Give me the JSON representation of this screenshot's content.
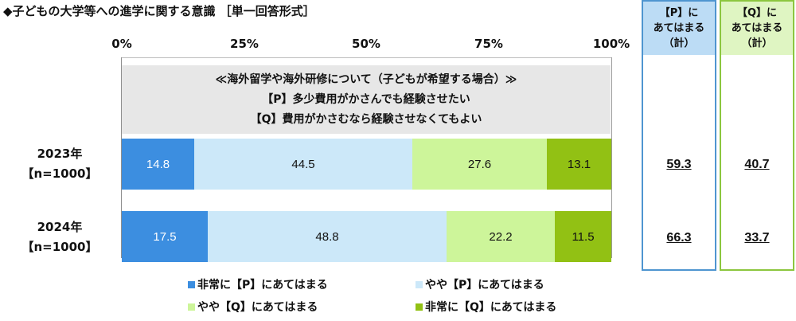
{
  "title": "◆子どもの大学等への進学に関する意識 ［単一回答形式］",
  "colors": {
    "strong_p": "#3c8ee0",
    "some_p": "#cce8f9",
    "some_q": "#cdf59a",
    "strong_q": "#92c114",
    "panel_p_border": "#4f95d0",
    "panel_q_border": "#8cc63f"
  },
  "note": {
    "line1": "≪海外留学や海外研修について（子どもが希望する場合）≫",
    "line2": "【P】多少費用がかさんでも経験させたい",
    "line3": "【Q】費用がかさむなら経験させなくてもよい"
  },
  "panels": {
    "p": {
      "line1": "【P】に",
      "line2": "あてはまる",
      "line3": "（計）"
    },
    "q": {
      "line1": "【Q】に",
      "line2": "あてはまる",
      "line3": "（計）"
    }
  },
  "chart_data": {
    "type": "bar",
    "orientation": "horizontal",
    "stacked": true,
    "xlim": [
      0,
      100
    ],
    "x_tick_labels": [
      "0%",
      "25%",
      "50%",
      "75%",
      "100%"
    ],
    "grid": true,
    "legend_position": "bottom",
    "categories": [
      {
        "line1": "2023年",
        "line2": "【n=1000】"
      },
      {
        "line1": "2024年",
        "line2": "【n=1000】"
      }
    ],
    "series": [
      {
        "name": "非常に【P】にあてはまる",
        "color": "#3c8ee0",
        "values": [
          14.8,
          17.5
        ]
      },
      {
        "name": "やや【P】にあてはまる",
        "color": "#cce8f9",
        "values": [
          44.5,
          48.8
        ]
      },
      {
        "name": "やや【Q】にあてはまる",
        "color": "#cdf59a",
        "values": [
          27.6,
          22.2
        ]
      },
      {
        "name": "非常に【Q】にあてはまる",
        "color": "#92c114",
        "values": [
          13.1,
          11.5
        ]
      }
    ],
    "totals_p": [
      "59.3",
      "66.3"
    ],
    "totals_q": [
      "40.7",
      "33.7"
    ]
  }
}
